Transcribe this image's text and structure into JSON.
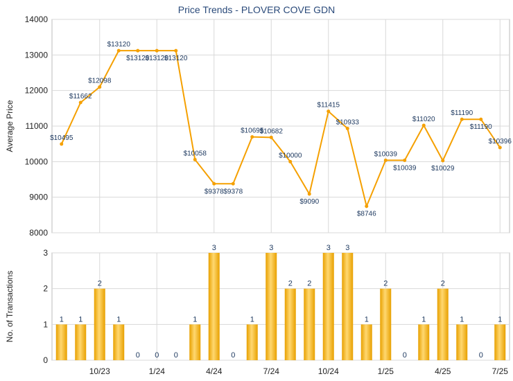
{
  "colors": {
    "line": "#f5a000",
    "bar_light": "#ffd870",
    "bar_dark": "#e8a000",
    "grid": "#d8d8d8",
    "label": "#1f3a60"
  },
  "chart_data": [
    {
      "type": "line",
      "title": "Price Trends - PLOVER COVE GDN",
      "ylabel": "Average Price",
      "ylim": [
        8000,
        14000
      ],
      "yticks": [
        "8000",
        "9000",
        "10000",
        "11000",
        "12000",
        "13000",
        "14000"
      ],
      "grid": true,
      "points": [
        {
          "value": 10495,
          "label": "$10495"
        },
        {
          "value": 11662,
          "label": "$11662"
        },
        {
          "value": 12098,
          "label": "$12098"
        },
        {
          "value": 13120,
          "label": "$13120"
        },
        {
          "value": 13120,
          "label": "$13120"
        },
        {
          "value": 13120,
          "label": "$13120"
        },
        {
          "value": 13120,
          "label": "$13120"
        },
        {
          "value": 10058,
          "label": "$10058"
        },
        {
          "value": 9378,
          "label": "$9378"
        },
        {
          "value": 9378,
          "label": "$9378"
        },
        {
          "value": 10695,
          "label": "$10695"
        },
        {
          "value": 10682,
          "label": "$10682"
        },
        {
          "value": 10000,
          "label": "$10000"
        },
        {
          "value": 9090,
          "label": "$9090"
        },
        {
          "value": 11415,
          "label": "$11415"
        },
        {
          "value": 10933,
          "label": "$10933"
        },
        {
          "value": 8746,
          "label": "$8746"
        },
        {
          "value": 10039,
          "label": "$10039"
        },
        {
          "value": 10039,
          "label": "$10039"
        },
        {
          "value": 11020,
          "label": "$11020"
        },
        {
          "value": 10029,
          "label": "$10029"
        },
        {
          "value": 11190,
          "label": "$11190"
        },
        {
          "value": 11190,
          "label": "$11190"
        },
        {
          "value": 10396,
          "label": "$10396"
        }
      ]
    },
    {
      "type": "bar",
      "ylabel": "No. of Transactions",
      "ylim": [
        0,
        3
      ],
      "yticks": [
        "0",
        "1",
        "2",
        "3"
      ],
      "grid": true,
      "values": [
        1,
        1,
        2,
        1,
        0,
        0,
        0,
        1,
        3,
        0,
        1,
        3,
        2,
        2,
        3,
        3,
        1,
        2,
        0,
        1,
        2,
        1,
        0,
        1
      ],
      "xticks": [
        {
          "index": 2,
          "label": "10/23"
        },
        {
          "index": 5,
          "label": "1/24"
        },
        {
          "index": 8,
          "label": "4/24"
        },
        {
          "index": 11,
          "label": "7/24"
        },
        {
          "index": 14,
          "label": "10/24"
        },
        {
          "index": 17,
          "label": "1/25"
        },
        {
          "index": 20,
          "label": "4/25"
        },
        {
          "index": 23,
          "label": "7/25"
        }
      ]
    }
  ]
}
